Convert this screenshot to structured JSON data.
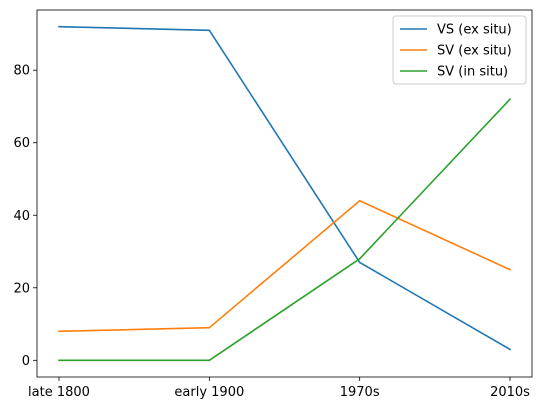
{
  "chart_data": {
    "type": "line",
    "categories": [
      "late 1800",
      "early 1900",
      "1970s",
      "2010s"
    ],
    "series": [
      {
        "name": "VS (ex situ)",
        "values": [
          92,
          91,
          27,
          3
        ],
        "color": "#1f77b4"
      },
      {
        "name": "SV (ex situ)",
        "values": [
          8,
          9,
          44,
          25
        ],
        "color": "#ff7f0e"
      },
      {
        "name": "SV (in situ)",
        "values": [
          0,
          0,
          28,
          72
        ],
        "color": "#2ca02c"
      }
    ],
    "yticks": [
      0,
      20,
      40,
      60,
      80
    ],
    "ylim": [
      -4.6,
      96.6
    ],
    "grid": false,
    "legend": "top-right"
  }
}
